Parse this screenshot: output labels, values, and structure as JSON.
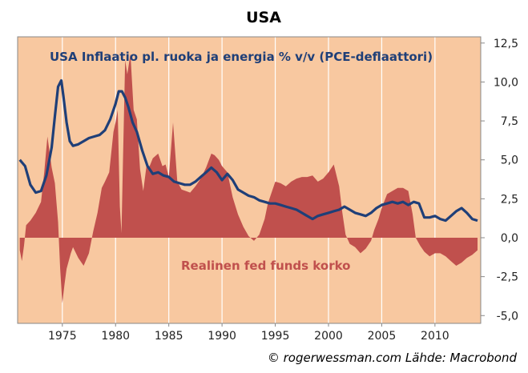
{
  "colors": {
    "plot_background": "#f8c8a0",
    "gridline": "#ffffff",
    "inflation_line": "#1f3f78",
    "real_rate_area": "#c0504d",
    "real_rate_label": "#c0504d"
  },
  "source": "© rogerwessman.com Lähde: Macrobond",
  "chart_data": {
    "type": "area+line",
    "title": "USA",
    "xlabel": "",
    "ylabel": "",
    "xlim": [
      1970.8,
      2014.3
    ],
    "ylim": [
      -5.5,
      12.9
    ],
    "x_ticks": [
      1975,
      1980,
      1985,
      1990,
      1995,
      2000,
      2005,
      2010
    ],
    "x_tick_labels": [
      "1975",
      "1980",
      "1985",
      "1990",
      "1995",
      "2000",
      "2005",
      "2010"
    ],
    "y_ticks": [
      12.5,
      10,
      7.5,
      5,
      2.5,
      0,
      -2.5,
      -5
    ],
    "y_tick_labels": [
      "12,5",
      "10,0",
      "7,5",
      "5,0",
      "2,5",
      "0,0",
      "-2,5",
      "-5,0"
    ],
    "y_axis_side": "right",
    "grid": "vertical",
    "series": [
      {
        "name": "USA Inflaatio pl. ruoka ja energia % v/v (PCE-deflaattori)",
        "kind": "line",
        "x": [
          1971.0,
          1971.5,
          1972.0,
          1972.5,
          1973.0,
          1973.5,
          1974.0,
          1974.3,
          1974.6,
          1974.9,
          1975.1,
          1975.4,
          1975.7,
          1976.0,
          1976.5,
          1977.0,
          1977.5,
          1978.0,
          1978.5,
          1979.0,
          1979.5,
          1980.0,
          1980.3,
          1980.6,
          1980.9,
          1981.2,
          1981.6,
          1982.0,
          1982.5,
          1983.0,
          1983.5,
          1984.0,
          1984.5,
          1985.0,
          1985.5,
          1986.0,
          1986.5,
          1987.0,
          1987.5,
          1988.0,
          1988.5,
          1989.0,
          1989.5,
          1990.0,
          1990.5,
          1991.0,
          1991.5,
          1992.0,
          1992.5,
          1993.0,
          1993.5,
          1994.0,
          1994.5,
          1995.0,
          1995.5,
          1996.0,
          1996.5,
          1997.0,
          1997.5,
          1998.0,
          1998.5,
          1999.0,
          1999.5,
          2000.0,
          2000.5,
          2001.0,
          2001.5,
          2002.0,
          2002.5,
          2003.0,
          2003.5,
          2004.0,
          2004.5,
          2005.0,
          2005.5,
          2006.0,
          2006.5,
          2007.0,
          2007.5,
          2008.0,
          2008.5,
          2009.0,
          2009.5,
          2010.0,
          2010.5,
          2011.0,
          2011.5,
          2012.0,
          2012.5,
          2013.0,
          2013.5,
          2014.0
        ],
        "y": [
          5.0,
          4.6,
          3.4,
          2.9,
          3.0,
          4.0,
          5.8,
          7.8,
          9.7,
          10.1,
          9.1,
          7.4,
          6.2,
          5.9,
          6.0,
          6.2,
          6.4,
          6.5,
          6.6,
          6.9,
          7.6,
          8.6,
          9.4,
          9.4,
          9.0,
          8.4,
          7.4,
          6.8,
          5.6,
          4.6,
          4.1,
          4.2,
          4.0,
          3.9,
          3.6,
          3.5,
          3.4,
          3.4,
          3.6,
          3.9,
          4.2,
          4.5,
          4.2,
          3.7,
          4.1,
          3.7,
          3.1,
          2.9,
          2.7,
          2.6,
          2.4,
          2.3,
          2.2,
          2.2,
          2.1,
          2.0,
          1.9,
          1.8,
          1.6,
          1.4,
          1.2,
          1.4,
          1.5,
          1.6,
          1.7,
          1.8,
          2.0,
          1.8,
          1.6,
          1.5,
          1.4,
          1.6,
          1.9,
          2.1,
          2.2,
          2.3,
          2.2,
          2.3,
          2.1,
          2.3,
          2.2,
          1.3,
          1.3,
          1.4,
          1.2,
          1.1,
          1.4,
          1.7,
          1.9,
          1.6,
          1.2,
          1.1
        ]
      },
      {
        "name": "Realinen fed funds korko",
        "kind": "area",
        "x": [
          1971.0,
          1971.2,
          1971.4,
          1971.6,
          1972.0,
          1972.5,
          1973.0,
          1973.3,
          1973.6,
          1974.0,
          1974.3,
          1974.6,
          1974.8,
          1975.0,
          1975.2,
          1975.4,
          1975.8,
          1976.0,
          1976.5,
          1977.0,
          1977.5,
          1977.9,
          1978.3,
          1978.7,
          1979.0,
          1979.4,
          1979.8,
          1980.0,
          1980.2,
          1980.4,
          1980.55,
          1980.7,
          1980.9,
          1981.1,
          1981.4,
          1981.7,
          1982.0,
          1982.3,
          1982.6,
          1982.9,
          1983.2,
          1983.5,
          1984.0,
          1984.4,
          1984.7,
          1985.0,
          1985.4,
          1985.8,
          1986.2,
          1986.6,
          1987.0,
          1987.5,
          1988.0,
          1988.5,
          1989.0,
          1989.3,
          1989.7,
          1990.0,
          1990.5,
          1991.0,
          1991.5,
          1992.0,
          1992.5,
          1993.0,
          1993.5,
          1994.0,
          1994.3,
          1994.7,
          1995.0,
          1995.5,
          1996.0,
          1996.5,
          1997.0,
          1997.5,
          1998.0,
          1998.5,
          1999.0,
          1999.5,
          2000.0,
          2000.5,
          2001.0,
          2001.3,
          2001.6,
          2002.0,
          2002.5,
          2003.0,
          2003.5,
          2004.0,
          2004.3,
          2004.7,
          2005.0,
          2005.5,
          2006.0,
          2006.5,
          2007.0,
          2007.5,
          2007.9,
          2008.2,
          2008.6,
          2009.0,
          2009.5,
          2010.0,
          2010.5,
          2011.0,
          2011.5,
          2012.0,
          2012.5,
          2013.0,
          2013.5,
          2014.0
        ],
        "y": [
          -0.8,
          -1.5,
          -0.5,
          0.8,
          1.1,
          1.6,
          2.3,
          4.2,
          6.5,
          4.5,
          3.5,
          1.0,
          -2.0,
          -4.2,
          -3.0,
          -2.0,
          -1.0,
          -0.6,
          -1.3,
          -1.8,
          -1.0,
          0.4,
          1.6,
          3.2,
          3.6,
          4.2,
          6.8,
          7.4,
          8.2,
          2.0,
          0.3,
          5.0,
          11.4,
          10.5,
          11.8,
          8.2,
          7.6,
          4.4,
          3.0,
          4.6,
          4.6,
          5.1,
          5.4,
          4.6,
          4.7,
          3.9,
          7.4,
          3.6,
          3.1,
          3.0,
          2.9,
          3.3,
          3.8,
          4.5,
          5.4,
          5.3,
          5.0,
          4.6,
          4.2,
          2.6,
          1.5,
          0.7,
          0.1,
          -0.2,
          0.2,
          1.2,
          2.2,
          3.0,
          3.6,
          3.5,
          3.3,
          3.6,
          3.8,
          3.9,
          3.9,
          4.0,
          3.6,
          3.8,
          4.2,
          4.7,
          3.3,
          1.6,
          0.2,
          -0.4,
          -0.6,
          -1.0,
          -0.7,
          -0.2,
          0.5,
          1.2,
          1.9,
          2.8,
          3.0,
          3.2,
          3.2,
          3.0,
          1.5,
          0.0,
          -0.5,
          -0.9,
          -1.2,
          -1.0,
          -1.0,
          -1.2,
          -1.5,
          -1.8,
          -1.6,
          -1.3,
          -1.1,
          -0.8
        ]
      }
    ],
    "annotations": [
      {
        "text": "USA Inflaatio pl. ruoka ja energia % v/v (PCE-deflaattori)",
        "series": 0
      },
      {
        "text": "Realinen fed funds korko",
        "series": 1
      }
    ]
  }
}
